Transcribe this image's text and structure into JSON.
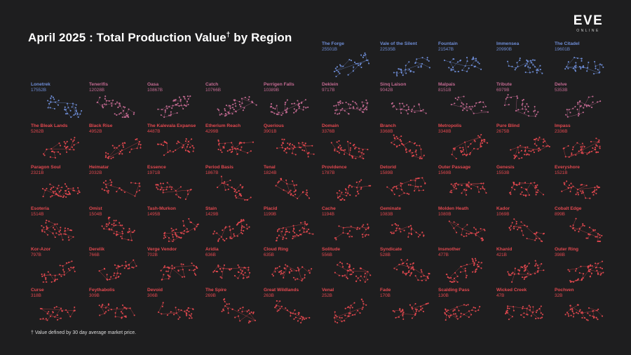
{
  "header": {
    "title_main": "April 2025 : Total Production Value",
    "title_dagger": "†",
    "title_tail": " by Region"
  },
  "logo": {
    "word": "EVE",
    "sub": "ONLINE"
  },
  "footnote": "† Value defined by 30 day average market price.",
  "colors": {
    "background": "#1e1e1f",
    "top_regions": "#6f8ed8",
    "mid_regions": "#c46a92",
    "low_regions": "#e3484f"
  },
  "chart_data": {
    "type": "scatter",
    "title": "April 2025 : Total Production Value† by Region",
    "value_unit": "B",
    "regions": [
      {
        "name": "The Forge",
        "value": "25501B"
      },
      {
        "name": "Vale of the Silent",
        "value": "22535B"
      },
      {
        "name": "Fountain",
        "value": "21547B"
      },
      {
        "name": "Immensea",
        "value": "20990B"
      },
      {
        "name": "The Citadel",
        "value": "19601B"
      },
      {
        "name": "Lonetrek",
        "value": "17552B"
      },
      {
        "name": "Tenerifis",
        "value": "12028B"
      },
      {
        "name": "Oasa",
        "value": "10867B"
      },
      {
        "name": "Catch",
        "value": "10766B"
      },
      {
        "name": "Perrigen Falls",
        "value": "10389B"
      },
      {
        "name": "Deklein",
        "value": "9717B"
      },
      {
        "name": "Sinq Laison",
        "value": "9042B"
      },
      {
        "name": "Malpais",
        "value": "8151B"
      },
      {
        "name": "Tribute",
        "value": "6979B"
      },
      {
        "name": "Delve",
        "value": "5353B"
      },
      {
        "name": "The Bleak Lands",
        "value": "5262B"
      },
      {
        "name": "Black Rise",
        "value": "4952B"
      },
      {
        "name": "The Kalevala Expanse",
        "value": "4487B"
      },
      {
        "name": "Etherium Reach",
        "value": "4299B"
      },
      {
        "name": "Querious",
        "value": "3901B"
      },
      {
        "name": "Domain",
        "value": "3376B"
      },
      {
        "name": "Branch",
        "value": "3368B"
      },
      {
        "name": "Metropolis",
        "value": "3348B"
      },
      {
        "name": "Pure Blind",
        "value": "2675B"
      },
      {
        "name": "Impass",
        "value": "2336B"
      },
      {
        "name": "Paragon Soul",
        "value": "2321B"
      },
      {
        "name": "Heimatar",
        "value": "2032B"
      },
      {
        "name": "Essence",
        "value": "1971B"
      },
      {
        "name": "Period Basis",
        "value": "1867B"
      },
      {
        "name": "Tenal",
        "value": "1824B"
      },
      {
        "name": "Providence",
        "value": "1787B"
      },
      {
        "name": "Detorid",
        "value": "1589B"
      },
      {
        "name": "Outer Passage",
        "value": "1569B"
      },
      {
        "name": "Genesis",
        "value": "1553B"
      },
      {
        "name": "Everyshore",
        "value": "1521B"
      },
      {
        "name": "Esoteria",
        "value": "1514B"
      },
      {
        "name": "Omist",
        "value": "1504B"
      },
      {
        "name": "Tash-Murkon",
        "value": "1495B"
      },
      {
        "name": "Stain",
        "value": "1429B"
      },
      {
        "name": "Placid",
        "value": "1199B"
      },
      {
        "name": "Cache",
        "value": "1194B"
      },
      {
        "name": "Geminate",
        "value": "1083B"
      },
      {
        "name": "Molden Heath",
        "value": "1080B"
      },
      {
        "name": "Kador",
        "value": "1069B"
      },
      {
        "name": "Cobalt Edge",
        "value": "899B"
      },
      {
        "name": "Kor-Azor",
        "value": "797B"
      },
      {
        "name": "Derelik",
        "value": "766B"
      },
      {
        "name": "Verge Vendor",
        "value": "702B"
      },
      {
        "name": "Aridia",
        "value": "636B"
      },
      {
        "name": "Cloud Ring",
        "value": "635B"
      },
      {
        "name": "Solitude",
        "value": "556B"
      },
      {
        "name": "Syndicate",
        "value": "528B"
      },
      {
        "name": "Insmother",
        "value": "477B"
      },
      {
        "name": "Khanid",
        "value": "421B"
      },
      {
        "name": "Outer Ring",
        "value": "398B"
      },
      {
        "name": "Curse",
        "value": "318B"
      },
      {
        "name": "Feythabolis",
        "value": "309B"
      },
      {
        "name": "Devoid",
        "value": "306B"
      },
      {
        "name": "The Spire",
        "value": "269B"
      },
      {
        "name": "Great Wildlands",
        "value": "263B"
      },
      {
        "name": "Venal",
        "value": "252B"
      },
      {
        "name": "Fade",
        "value": "170B"
      },
      {
        "name": "Scalding Pass",
        "value": "130B"
      },
      {
        "name": "Wicked Creek",
        "value": "47B"
      },
      {
        "name": "Pochven",
        "value": "32B"
      }
    ]
  }
}
